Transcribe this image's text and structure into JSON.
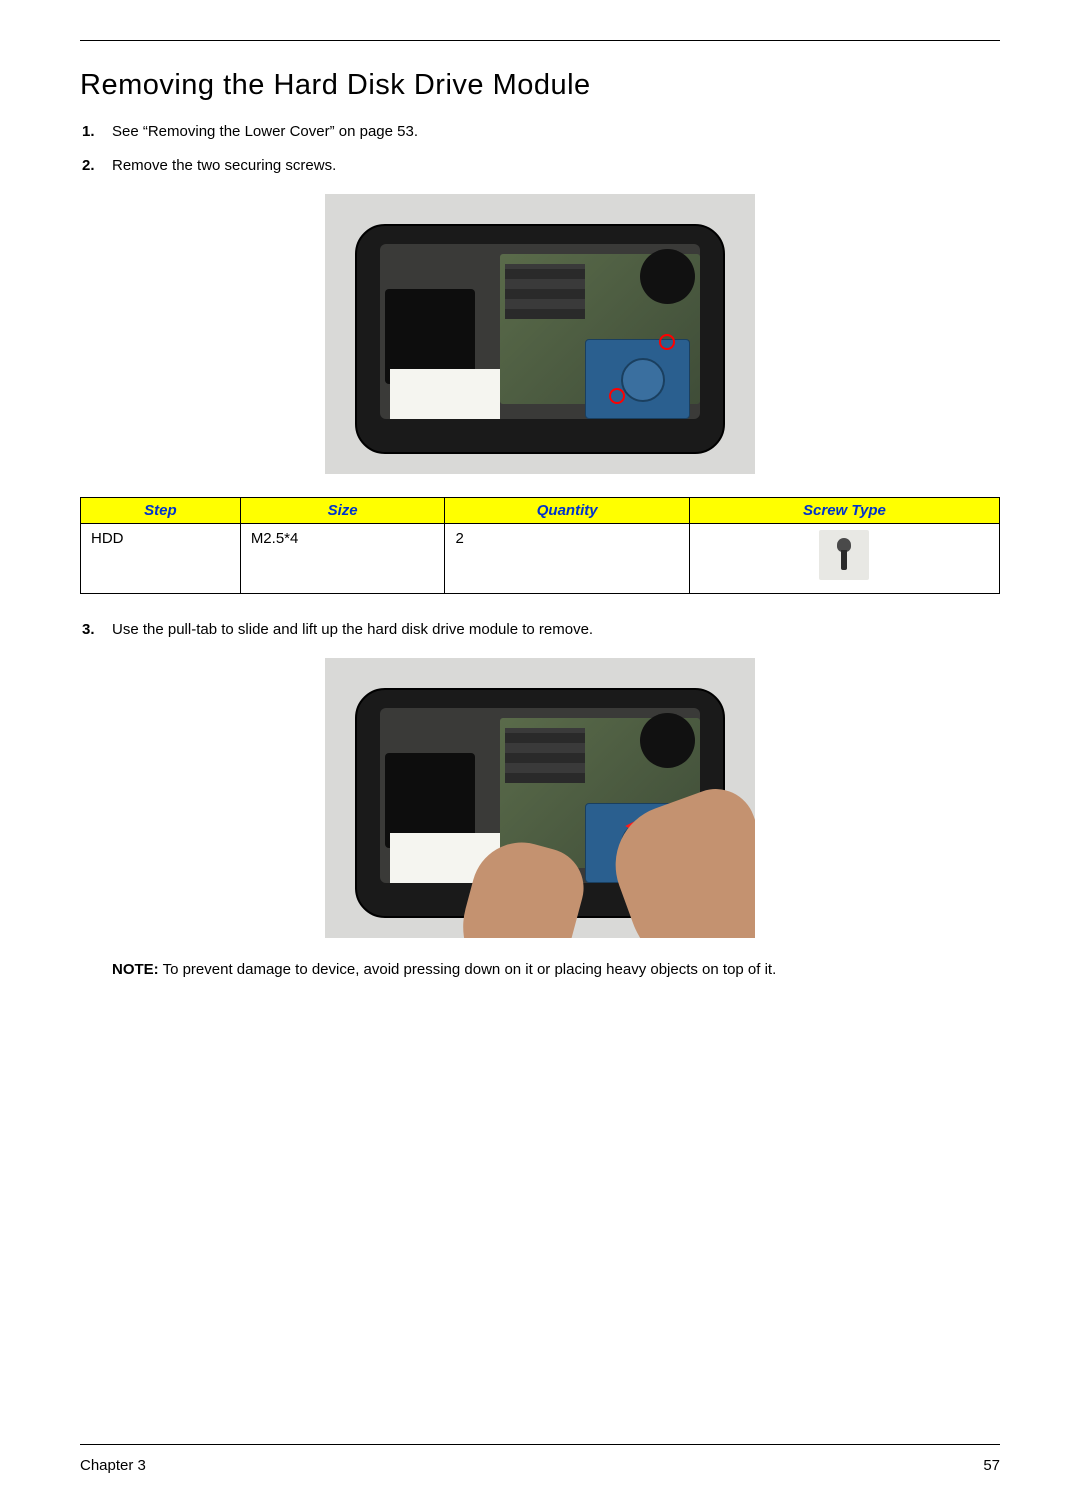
{
  "heading": "Removing the Hard Disk Drive Module",
  "steps": {
    "s1": {
      "num": "1.",
      "text": "See “Removing the Lower Cover” on page 53."
    },
    "s2": {
      "num": "2.",
      "text": "Remove the two securing screws."
    },
    "s3": {
      "num": "3.",
      "text": "Use the pull-tab to slide and lift up the hard disk drive module to remove."
    }
  },
  "table": {
    "headers": {
      "step": "Step",
      "size": "Size",
      "qty": "Quantity",
      "type": "Screw Type"
    },
    "row": {
      "step": "HDD",
      "size": "M2.5*4",
      "qty": "2"
    },
    "header_bg": "#ffff00",
    "header_color": "#0033cc"
  },
  "note": {
    "label": "NOTE:",
    "text": " To prevent damage to device, avoid pressing down on it or placing heavy objects on top of it."
  },
  "footer": {
    "chapter": "Chapter 3",
    "page": "57"
  }
}
